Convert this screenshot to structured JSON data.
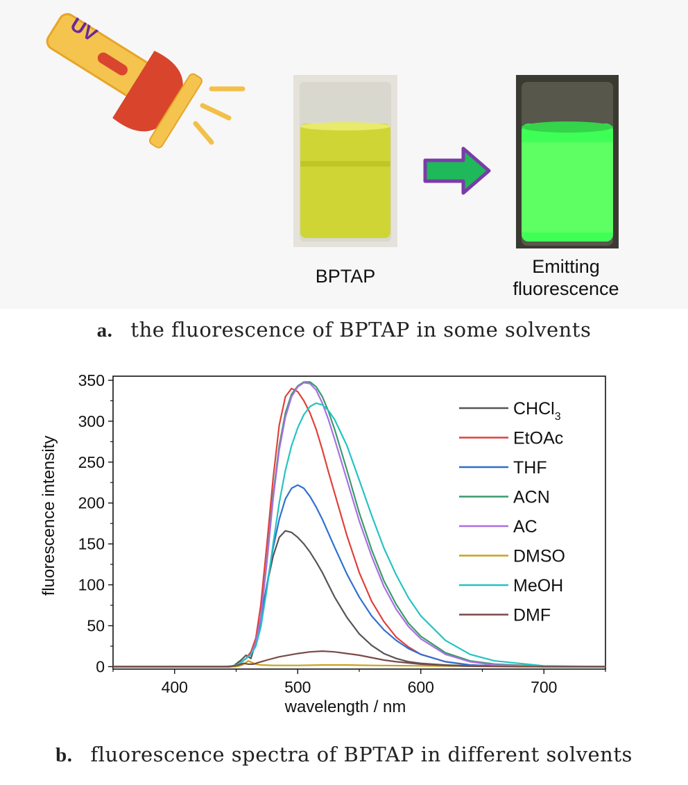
{
  "panel_a": {
    "flashlight_label": "UV",
    "vial_left_label": "BPTAP",
    "vial_right_label_line1": "Emitting",
    "vial_right_label_line2": "fluorescence",
    "caption_letter": "a.",
    "caption_text": "the fluorescence of BPTAP in some solvents"
  },
  "panel_b": {
    "caption_letter": "b.",
    "caption_text": "fluorescence spectra of BPTAP in different solvents"
  },
  "chart_data": {
    "type": "line",
    "xlabel": "wavelength / nm",
    "ylabel": "fluorescence intensity",
    "xlim": [
      350,
      750
    ],
    "ylim": [
      -3,
      355
    ],
    "xticks": [
      400,
      500,
      600,
      700
    ],
    "yticks": [
      0,
      50,
      100,
      150,
      200,
      250,
      300,
      350
    ],
    "legend_position": "top-right",
    "series": [
      {
        "name": "CHCl3",
        "name_base": "CHCl",
        "name_sub": "3",
        "color": "#555555",
        "x": [
          350,
          440,
          448,
          454,
          458,
          462,
          466,
          470,
          475,
          480,
          485,
          490,
          495,
          500,
          505,
          510,
          515,
          520,
          525,
          530,
          540,
          550,
          560,
          570,
          580,
          590,
          600,
          620,
          640,
          660,
          700,
          750
        ],
        "y": [
          0,
          0,
          1,
          8,
          14,
          10,
          30,
          60,
          100,
          135,
          158,
          166,
          164,
          158,
          150,
          140,
          128,
          115,
          100,
          85,
          60,
          40,
          26,
          16,
          10,
          6,
          4,
          2,
          1,
          0.5,
          0,
          0
        ]
      },
      {
        "name": "EtOAc",
        "color": "#e0403a",
        "x": [
          350,
          445,
          452,
          458,
          462,
          466,
          470,
          475,
          480,
          485,
          490,
          495,
          500,
          505,
          510,
          515,
          520,
          525,
          530,
          540,
          550,
          560,
          570,
          580,
          590,
          600,
          620,
          640,
          660,
          700,
          750
        ],
        "y": [
          0,
          0,
          3,
          10,
          18,
          35,
          75,
          150,
          230,
          295,
          330,
          340,
          336,
          325,
          310,
          290,
          265,
          238,
          212,
          160,
          115,
          80,
          55,
          36,
          24,
          15,
          6,
          2,
          1,
          0,
          0
        ]
      },
      {
        "name": "THF",
        "color": "#2f6fd1",
        "x": [
          350,
          445,
          452,
          458,
          462,
          466,
          470,
          475,
          480,
          485,
          490,
          495,
          500,
          505,
          510,
          515,
          520,
          525,
          530,
          540,
          550,
          560,
          570,
          580,
          590,
          600,
          620,
          640,
          660,
          700,
          750
        ],
        "y": [
          0,
          0,
          3,
          10,
          15,
          28,
          55,
          100,
          145,
          180,
          205,
          218,
          222,
          218,
          208,
          195,
          180,
          163,
          146,
          113,
          85,
          62,
          45,
          32,
          22,
          15,
          6,
          2,
          1,
          0,
          0
        ]
      },
      {
        "name": "ACN",
        "color": "#3a9a6a",
        "x": [
          350,
          445,
          452,
          458,
          462,
          466,
          470,
          475,
          480,
          485,
          490,
          495,
          500,
          505,
          510,
          515,
          520,
          525,
          530,
          540,
          550,
          560,
          570,
          580,
          590,
          600,
          620,
          640,
          660,
          700,
          750
        ],
        "y": [
          0,
          0,
          3,
          10,
          15,
          30,
          60,
          130,
          210,
          270,
          310,
          333,
          343,
          348,
          348,
          342,
          330,
          312,
          290,
          240,
          188,
          143,
          105,
          76,
          53,
          37,
          17,
          7,
          3,
          0.5,
          0
        ]
      },
      {
        "name": "AC",
        "color": "#a870e0",
        "x": [
          350,
          445,
          452,
          458,
          462,
          466,
          470,
          475,
          480,
          485,
          490,
          495,
          500,
          505,
          510,
          515,
          520,
          525,
          530,
          540,
          550,
          560,
          570,
          580,
          590,
          600,
          620,
          640,
          660,
          700,
          750
        ],
        "y": [
          0,
          0,
          3,
          10,
          15,
          30,
          60,
          128,
          205,
          265,
          305,
          330,
          342,
          347,
          346,
          338,
          322,
          302,
          278,
          228,
          178,
          135,
          98,
          70,
          49,
          34,
          15,
          6,
          2,
          0.5,
          0
        ]
      },
      {
        "name": "DMSO",
        "color": "#c7a21a",
        "x": [
          350,
          450,
          455,
          458,
          460,
          463,
          466,
          470,
          480,
          500,
          520,
          540,
          560,
          600,
          650,
          750
        ],
        "y": [
          0,
          0,
          2,
          5,
          7,
          5,
          3,
          2,
          1.5,
          1.5,
          2,
          2,
          1.5,
          1,
          0.5,
          0
        ]
      },
      {
        "name": "MeOH",
        "color": "#25c2c2",
        "x": [
          350,
          445,
          452,
          458,
          462,
          466,
          470,
          475,
          480,
          485,
          490,
          495,
          500,
          505,
          510,
          515,
          520,
          525,
          530,
          540,
          550,
          560,
          570,
          580,
          590,
          600,
          620,
          640,
          660,
          700,
          750
        ],
        "y": [
          0,
          0,
          3,
          10,
          15,
          25,
          48,
          95,
          150,
          200,
          240,
          270,
          292,
          308,
          318,
          322,
          320,
          313,
          302,
          270,
          228,
          185,
          145,
          112,
          84,
          62,
          32,
          15,
          7,
          1,
          0
        ]
      },
      {
        "name": "DMF",
        "color": "#7a4a48",
        "x": [
          350,
          445,
          452,
          456,
          460,
          464,
          468,
          475,
          485,
          500,
          510,
          520,
          530,
          540,
          550,
          560,
          570,
          580,
          600,
          620,
          640,
          680,
          750
        ],
        "y": [
          0,
          0,
          2,
          4,
          3,
          3,
          5,
          8,
          12,
          16,
          18,
          19,
          18,
          16,
          14,
          11,
          8,
          6,
          3,
          1.5,
          0.5,
          0,
          0
        ]
      }
    ]
  }
}
